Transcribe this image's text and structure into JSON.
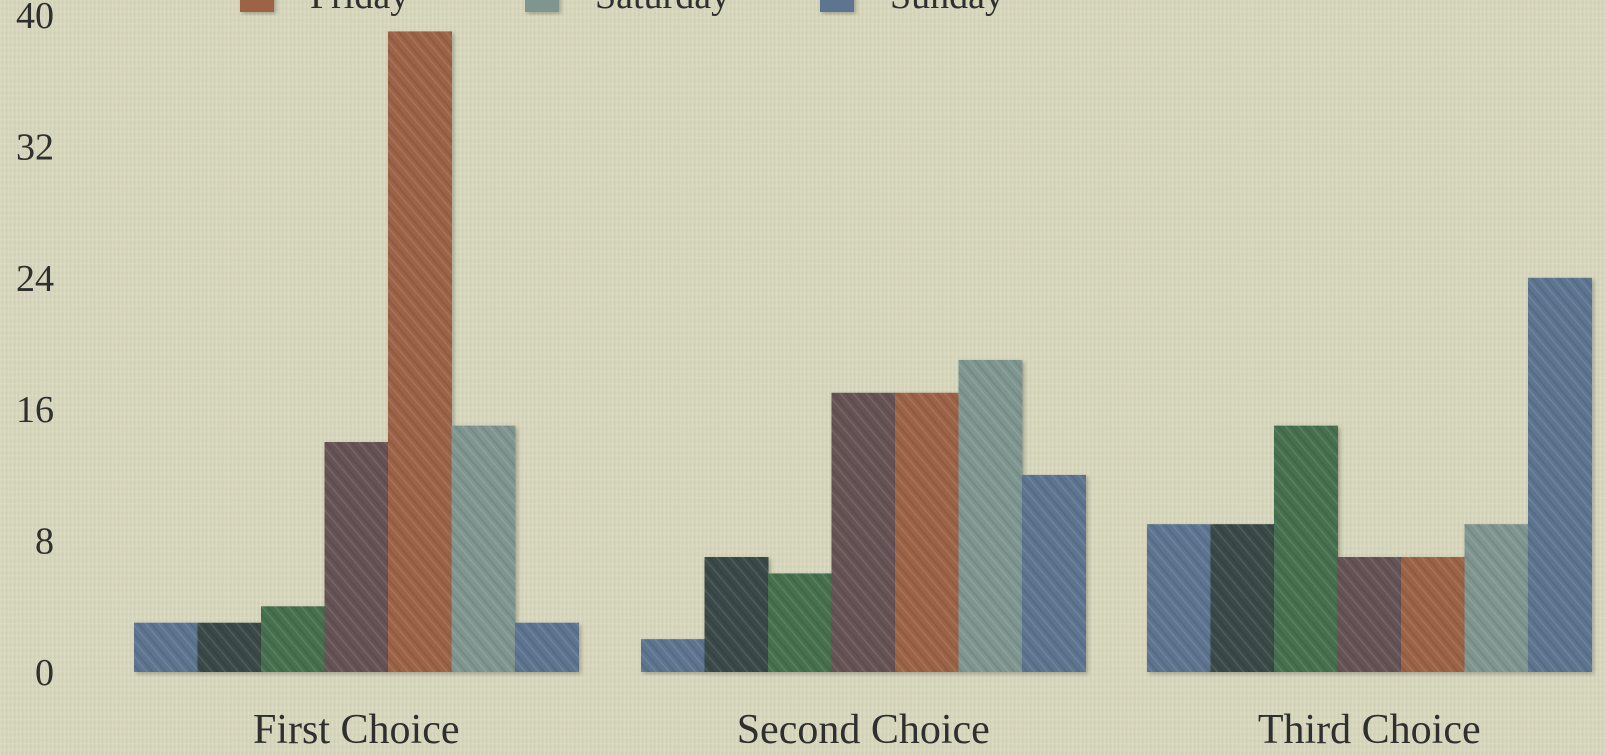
{
  "chart_data": {
    "type": "bar",
    "categories": [
      "First Choice",
      "Second Choice",
      "Third Choice"
    ],
    "series": [
      {
        "color": "#5d7590",
        "values": [
          3,
          2,
          9
        ]
      },
      {
        "color": "#3b4a4a",
        "values": [
          3,
          7,
          9
        ]
      },
      {
        "color": "#46704f",
        "values": [
          4,
          6,
          15
        ]
      },
      {
        "color": "#665257",
        "values": [
          14,
          17,
          7
        ]
      },
      {
        "name": "Friday",
        "color": "#9c6446",
        "values": [
          39,
          17,
          7
        ]
      },
      {
        "name": "Saturday",
        "color": "#7f9690",
        "values": [
          15,
          19,
          9
        ]
      },
      {
        "name": "Sunday",
        "color": "#5d7590",
        "values": [
          3,
          12,
          24
        ]
      }
    ],
    "yticks": [
      0,
      8,
      16,
      24,
      32,
      40
    ],
    "ylim": [
      0,
      40
    ],
    "grid": false,
    "legend_position": "top"
  }
}
